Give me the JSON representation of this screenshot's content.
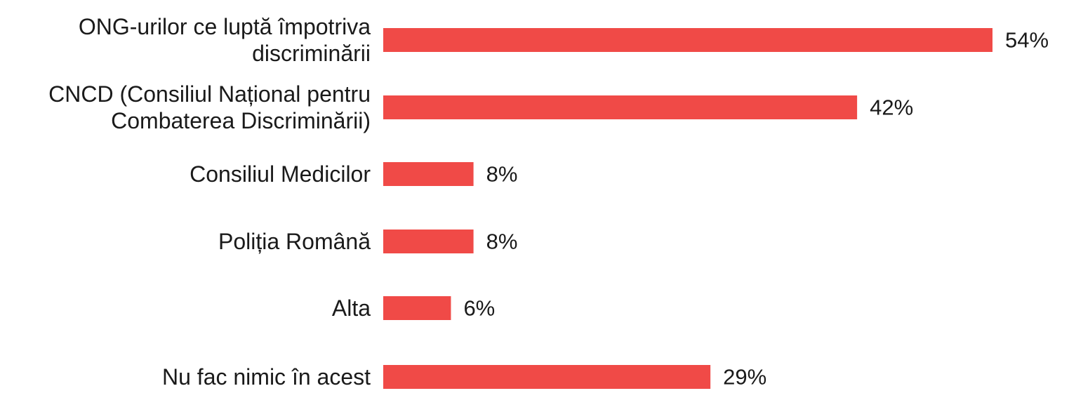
{
  "chart_data": {
    "type": "bar",
    "orientation": "horizontal",
    "categories": [
      [
        "ONG-urilor ce luptă împotriva",
        "discriminării"
      ],
      [
        "CNCD (Consiliul Național pentru",
        "Combaterea Discriminării)"
      ],
      [
        "Consiliul Medicilor"
      ],
      [
        "Poliția Română"
      ],
      [
        "Alta"
      ],
      [
        "Nu fac nimic în acest"
      ]
    ],
    "values": [
      54,
      42,
      8,
      8,
      6,
      29
    ],
    "value_labels": [
      "54%",
      "42%",
      "8%",
      "8%",
      "6%",
      "29%"
    ],
    "unit": "%",
    "xlim": [
      0,
      54
    ],
    "bar_color": "#f04a47",
    "grid": false,
    "legend": "none",
    "title": "",
    "xlabel": "",
    "ylabel": ""
  }
}
